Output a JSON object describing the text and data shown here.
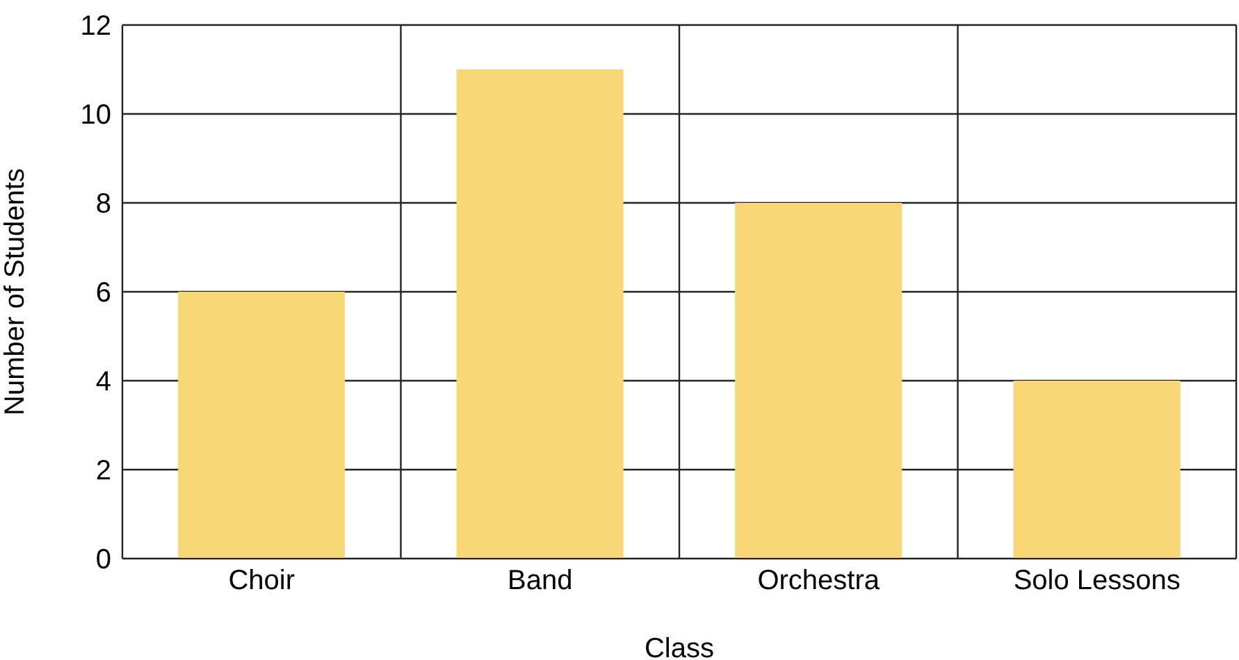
{
  "chart_data": {
    "type": "bar",
    "xlabel": "Class",
    "ylabel": "Number of Students",
    "categories": [
      "Choir",
      "Band",
      "Orchestra",
      "Solo Lessons"
    ],
    "values": [
      6,
      11,
      8,
      4
    ],
    "color": "#f9d676",
    "ylim": [
      0,
      12
    ],
    "yticks": [
      0,
      2,
      4,
      6,
      8,
      10,
      12
    ],
    "grid": true,
    "legend": false
  }
}
